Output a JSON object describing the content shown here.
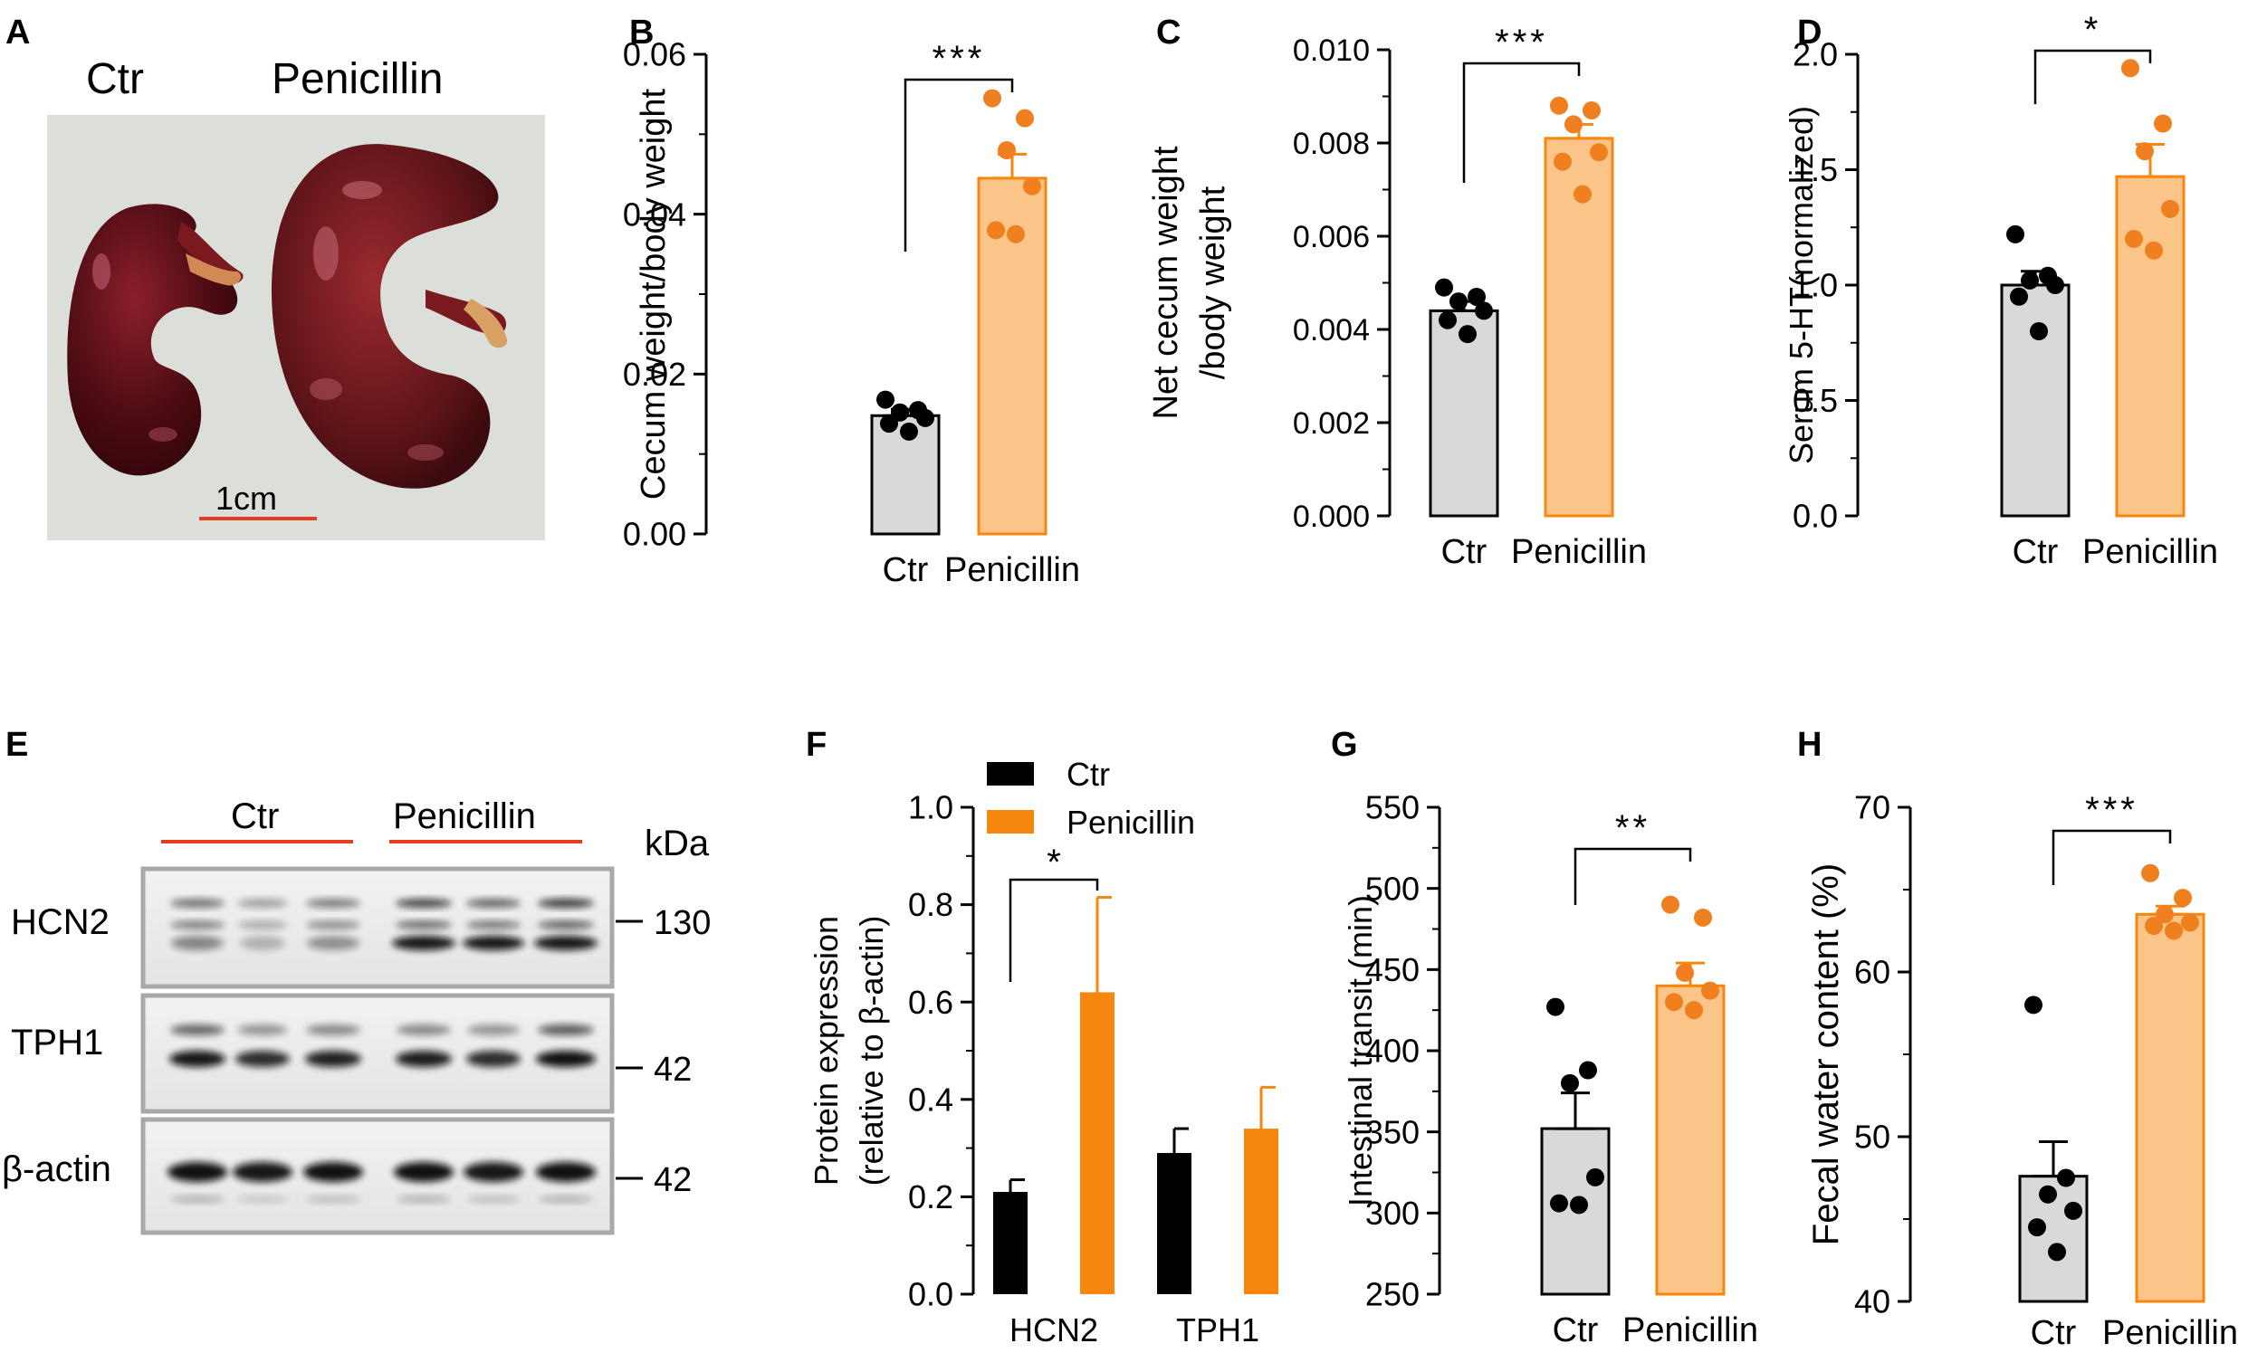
{
  "colors": {
    "ctr_fill": "#d9d9d9",
    "pen_fill": "#fbc58a",
    "pen_point": "#f0801f",
    "pen_solid": "#f7860f",
    "scale_bar": "#e63d22",
    "black": "#000000"
  },
  "panel_a": {
    "letter": "A",
    "ctr_label": "Ctr",
    "pen_label": "Penicillin",
    "scale_label": "1cm"
  },
  "panel_e": {
    "letter": "E",
    "ctr_label": "Ctr",
    "pen_label": "Penicillin",
    "kda_label": "kDa",
    "rows": [
      {
        "protein": "HCN2",
        "marker": "130"
      },
      {
        "protein": "TPH1",
        "marker": "42"
      },
      {
        "protein": "β-actin",
        "marker": "42"
      }
    ]
  },
  "chart_data": [
    {
      "id": "B",
      "letter": "B",
      "type": "bar",
      "ylabel": "Cecum weight/body weight",
      "categories": [
        "Ctr",
        "Penicillin"
      ],
      "values": [
        0.0148,
        0.0445
      ],
      "errors": [
        0.0008,
        0.003
      ],
      "ylim": [
        0,
        0.06
      ],
      "ticks": [
        0.0,
        0.02,
        0.04,
        0.06
      ],
      "tick_labels": [
        "0.00",
        "0.02",
        "0.04",
        "0.06"
      ],
      "points": [
        [
          0.0168,
          0.0155,
          0.0152,
          0.0145,
          0.0138,
          0.0128
        ],
        [
          0.0545,
          0.052,
          0.048,
          0.0435,
          0.038,
          0.0375
        ]
      ],
      "significance": "***"
    },
    {
      "id": "C",
      "letter": "C",
      "type": "bar",
      "ylabel": [
        "Net cecum weight",
        "/body weight"
      ],
      "categories": [
        "Ctr",
        "Penicillin"
      ],
      "values": [
        0.0044,
        0.0081
      ],
      "errors": [
        0.0002,
        0.0003
      ],
      "ylim": [
        0,
        0.01
      ],
      "ticks": [
        0.0,
        0.002,
        0.004,
        0.006,
        0.008,
        0.01
      ],
      "tick_labels": [
        "0.000",
        "0.002",
        "0.004",
        "0.006",
        "0.008",
        "0.010"
      ],
      "points": [
        [
          0.0049,
          0.0047,
          0.0046,
          0.0044,
          0.0042,
          0.0039
        ],
        [
          0.0088,
          0.0087,
          0.0084,
          0.0078,
          0.0076,
          0.0069
        ]
      ],
      "significance": "***"
    },
    {
      "id": "D",
      "letter": "D",
      "type": "bar",
      "ylabel": "Serum 5-HT(normalized)",
      "categories": [
        "Ctr",
        "Penicillin"
      ],
      "values": [
        1.0,
        1.47
      ],
      "errors": [
        0.06,
        0.14
      ],
      "ylim": [
        0,
        2.0
      ],
      "ticks": [
        0.0,
        0.5,
        1.0,
        1.5,
        2.0
      ],
      "tick_labels": [
        "0.0",
        "0.5",
        "1.0",
        "1.5",
        "2.0"
      ],
      "points": [
        [
          1.22,
          1.04,
          1.02,
          1.0,
          0.95,
          0.8
        ],
        [
          1.94,
          1.7,
          1.58,
          1.33,
          1.2,
          1.15
        ]
      ],
      "significance": "*"
    },
    {
      "id": "F",
      "letter": "F",
      "type": "bar",
      "ylabel": [
        "Protein expression",
        "(relative to β-actin)"
      ],
      "categories": [
        "HCN2",
        "TPH1"
      ],
      "series": [
        {
          "name": "Ctr",
          "values": [
            0.21,
            0.29
          ],
          "errors": [
            0.025,
            0.05
          ]
        },
        {
          "name": "Penicillin",
          "values": [
            0.62,
            0.34
          ],
          "errors": [
            0.195,
            0.085
          ]
        }
      ],
      "ylim": [
        0,
        1.0
      ],
      "ticks": [
        0.0,
        0.2,
        0.4,
        0.6,
        0.8,
        1.0
      ],
      "tick_labels": [
        "0.0",
        "0.2",
        "0.4",
        "0.6",
        "0.8",
        "1.0"
      ],
      "legend": "top-left",
      "significance": "*"
    },
    {
      "id": "G",
      "letter": "G",
      "type": "bar",
      "ylabel": "Intestinal transit (min)",
      "categories": [
        "Ctr",
        "Penicillin"
      ],
      "values": [
        352,
        440
      ],
      "errors": [
        22,
        14
      ],
      "ylim": [
        250,
        550
      ],
      "ticks": [
        250,
        300,
        350,
        400,
        450,
        500,
        550
      ],
      "tick_labels": [
        "250",
        "300",
        "350",
        "400",
        "450",
        "500",
        "550"
      ],
      "points": [
        [
          427,
          388,
          380,
          322,
          306,
          305
        ],
        [
          490,
          482,
          448,
          437,
          430,
          425
        ]
      ],
      "significance": "**"
    },
    {
      "id": "H",
      "letter": "H",
      "type": "bar",
      "ylabel": "Fecal water content (%)",
      "categories": [
        "Ctr",
        "Penicillin"
      ],
      "values": [
        47.6,
        63.5
      ],
      "errors": [
        2.1,
        0.5
      ],
      "ylim": [
        40,
        70
      ],
      "ticks": [
        40,
        50,
        60,
        70
      ],
      "tick_labels": [
        "40",
        "50",
        "60",
        "70"
      ],
      "points": [
        [
          58,
          47.5,
          46.5,
          45.5,
          44.5,
          43
        ],
        [
          66,
          64.5,
          63.5,
          63,
          62.8,
          62.5
        ]
      ],
      "significance": "***"
    }
  ]
}
